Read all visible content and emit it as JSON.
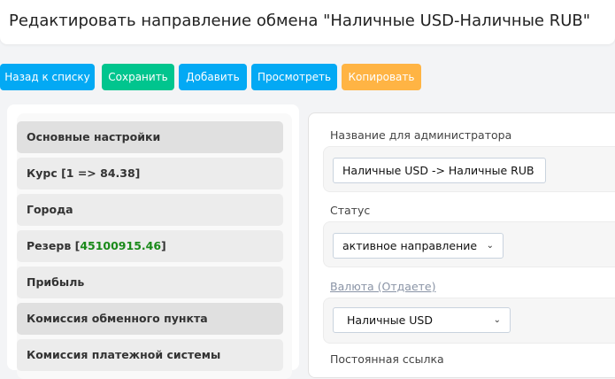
{
  "header": {
    "title": "Редактировать направление обмена \"Наличные USD-Наличные RUB\""
  },
  "toolbar": [
    {
      "label": "Назад к списку",
      "color": "#03a9f4"
    },
    {
      "label": "Сохранить",
      "color": "#00c58e"
    },
    {
      "label": "Добавить",
      "color": "#03a9f4"
    },
    {
      "label": "Просмотреть",
      "color": "#03a9f4"
    },
    {
      "label": "Копировать",
      "color": "#ffb444"
    }
  ],
  "sidebar": {
    "items": [
      {
        "label": "Основные настройки"
      },
      {
        "label": "Курс [1 => 84.38]"
      },
      {
        "label": "Города"
      },
      {
        "label": "Резерв [",
        "value": "45100915.46",
        "suffix": "]",
        "value_color": "#1a8a1a"
      },
      {
        "label": "Прибыль"
      },
      {
        "label": "Комиссия обменного пункта"
      },
      {
        "label": "Комиссия платежной системы"
      }
    ]
  },
  "form": {
    "admin_name": {
      "label": "Название для администратора",
      "value": "Наличные USD -> Наличные RUB"
    },
    "status": {
      "label": "Статус",
      "value": "активное направление"
    },
    "currency_give": {
      "label": "Валюта (Отдаете)",
      "value": "Наличные USD"
    },
    "next_label": "Постоянная ссылка"
  }
}
